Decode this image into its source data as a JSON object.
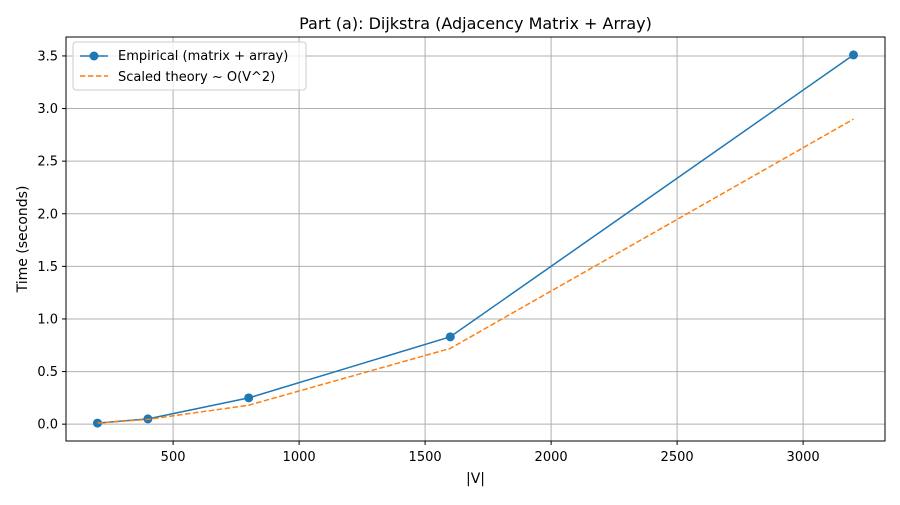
{
  "chart_data": {
    "type": "line",
    "title": "Part (a): Dijkstra (Adjacency Matrix + Array)",
    "xlabel": "|V|",
    "ylabel": "Time (seconds)",
    "xlim": [
      75,
      3325
    ],
    "ylim": [
      -0.16,
      3.68
    ],
    "xticks": [
      500,
      1000,
      1500,
      2000,
      2500,
      3000
    ],
    "yticks": [
      0.0,
      0.5,
      1.0,
      1.5,
      2.0,
      2.5,
      3.0,
      3.5
    ],
    "xtick_labels": [
      "500",
      "1000",
      "1500",
      "2000",
      "2500",
      "3000"
    ],
    "ytick_labels": [
      "0.0",
      "0.5",
      "1.0",
      "1.5",
      "2.0",
      "2.5",
      "3.0",
      "3.5"
    ],
    "grid": true,
    "legend_position": "top-left",
    "series": [
      {
        "name": "Empirical (matrix + array)",
        "color": "#1f77b4",
        "style": "solid",
        "marker": "circle",
        "x": [
          200,
          400,
          800,
          1600,
          3200
        ],
        "y": [
          0.01,
          0.05,
          0.25,
          0.83,
          3.51
        ]
      },
      {
        "name": "Scaled theory ~ O(V^2)",
        "color": "#ff7f0e",
        "style": "dashed",
        "marker": "none",
        "x": [
          200,
          400,
          800,
          1600,
          3200
        ],
        "y": [
          0.011,
          0.045,
          0.18,
          0.72,
          2.9
        ]
      }
    ]
  }
}
